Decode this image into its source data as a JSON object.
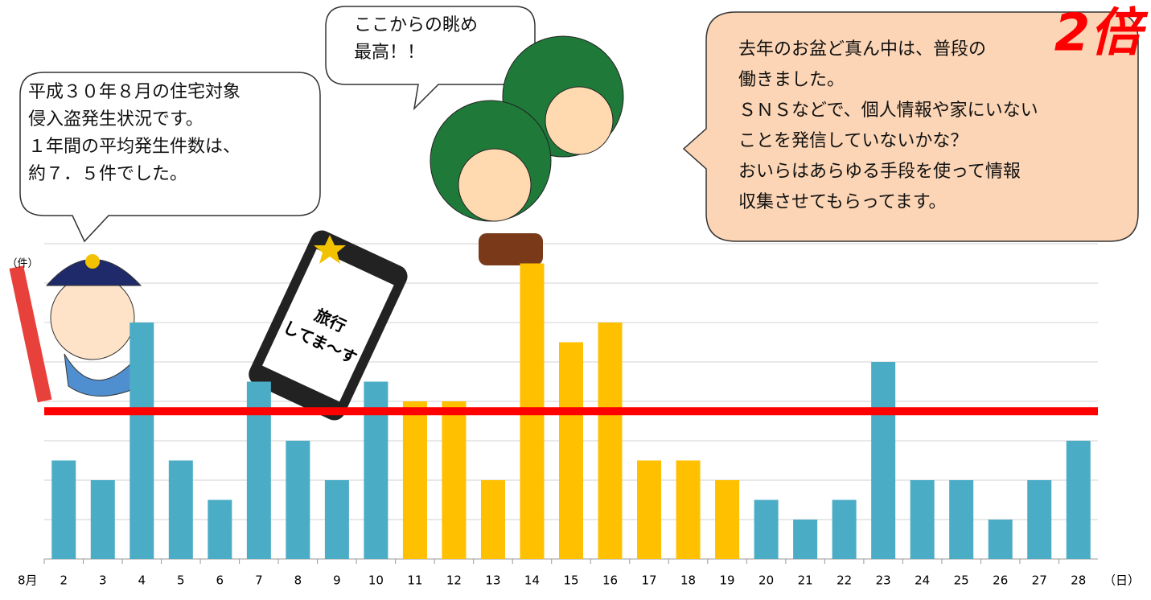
{
  "chart_data": {
    "type": "bar",
    "categories": [
      "2",
      "3",
      "4",
      "5",
      "6",
      "7",
      "8",
      "9",
      "10",
      "11",
      "12",
      "13",
      "14",
      "15",
      "16",
      "17",
      "18",
      "19",
      "20",
      "21",
      "22",
      "23",
      "24",
      "25",
      "26",
      "27",
      "28"
    ],
    "values": [
      5,
      4,
      12,
      5,
      3,
      9,
      6,
      4,
      9,
      8,
      8,
      4,
      15,
      11,
      12,
      5,
      5,
      4,
      3,
      2,
      3,
      10,
      4,
      4,
      2,
      4,
      6
    ],
    "colors": [
      "#4bacc6",
      "#4bacc6",
      "#4bacc6",
      "#4bacc6",
      "#4bacc6",
      "#4bacc6",
      "#4bacc6",
      "#4bacc6",
      "#4bacc6",
      "#ffc000",
      "#ffc000",
      "#ffc000",
      "#ffc000",
      "#ffc000",
      "#ffc000",
      "#ffc000",
      "#ffc000",
      "#ffc000",
      "#4bacc6",
      "#4bacc6",
      "#4bacc6",
      "#4bacc6",
      "#4bacc6",
      "#4bacc6",
      "#4bacc6",
      "#4bacc6",
      "#4bacc6"
    ],
    "x_label_prefix": "8月",
    "x_label": "（日）",
    "y_label": "（件）",
    "ylim": [
      0,
      16
    ],
    "yticks": [
      0,
      2,
      4,
      6,
      8,
      10,
      12,
      14,
      16
    ],
    "grid": true,
    "reference_line": {
      "value": 7.5,
      "color": "#ff0000"
    },
    "annotations": [
      {
        "lines": [
          "平成３０年８月の住宅対象",
          "侵入盗発生状況です。",
          "１年間の平均発生件数は、",
          "約７．５件でした。"
        ]
      },
      {
        "lines": [
          "ここからの眺め",
          "最高！！"
        ]
      },
      {
        "lines": [
          "去年のお盆ど真ん中は、普段の",
          "働きました。",
          "ＳＮＳなどで、個人情報や家にいない",
          "ことを発信していないかな？",
          "おいらはあらゆる手段を使って情報",
          "収集させてもらってます。"
        ],
        "emphasis": "2倍"
      },
      {
        "lines": [
          "旅行",
          "してま〜す"
        ]
      }
    ]
  }
}
